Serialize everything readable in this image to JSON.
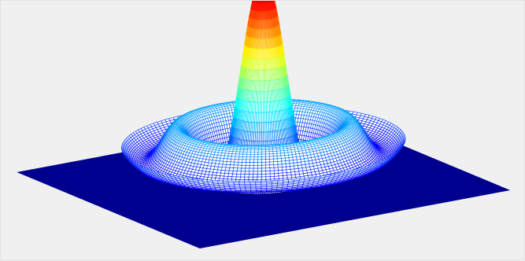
{
  "chart_data": {
    "type": "surface",
    "function": "sinc",
    "description_of_shape": "radially symmetric Mexican-hat / sinc surface z = sin(r)/r with ripples decaying outward on a flat square base",
    "title": "",
    "xlabel": "",
    "ylabel": "",
    "zlabel": "",
    "colormap": "jet",
    "axes_visible": false,
    "grid": false,
    "legend": "none",
    "xlim": [
      -16,
      16
    ],
    "ylim": [
      -16,
      16
    ],
    "zlim": [
      -0.22,
      1.0
    ],
    "peak_value": 1.0,
    "base_value": -0.22,
    "support_radius": 16
  },
  "colors": {
    "background": "#f0f0f0",
    "base_plane": "#00008f",
    "mesh_edge": "#000000"
  }
}
